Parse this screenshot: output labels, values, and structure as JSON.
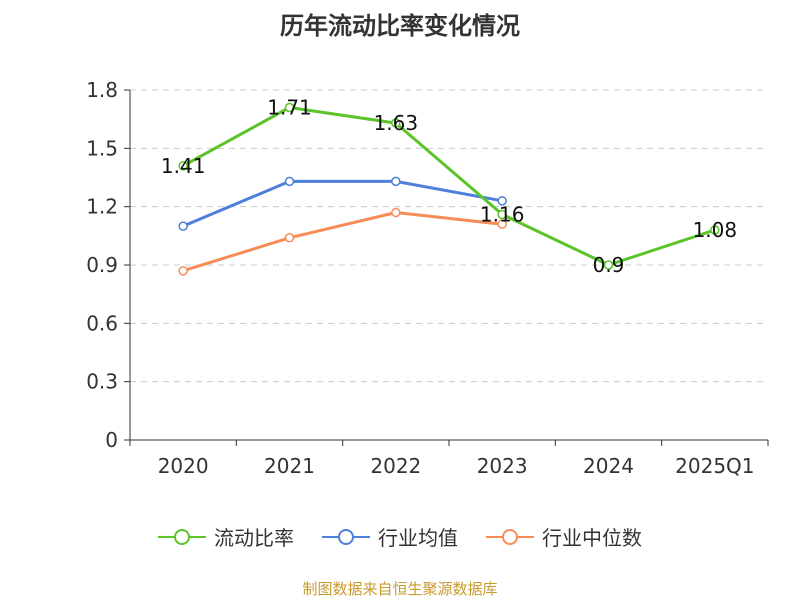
{
  "chart_data": {
    "type": "line",
    "title": "历年流动比率变化情况",
    "categories": [
      "2020",
      "2021",
      "2022",
      "2023",
      "2024",
      "2025Q1"
    ],
    "y_ticks": [
      "0",
      "0.3",
      "0.6",
      "0.9",
      "1.2",
      "1.5",
      "1.8"
    ],
    "ylim": [
      0,
      1.8
    ],
    "grid": true,
    "legend_position": "bottom",
    "series": [
      {
        "name": "流动比率",
        "color": "#5cc32a",
        "values": [
          1.41,
          1.71,
          1.63,
          1.16,
          0.9,
          1.08
        ],
        "labels": [
          "1.41",
          "1.71",
          "1.63",
          "1.16",
          "0.9",
          "1.08"
        ]
      },
      {
        "name": "行业均值",
        "color": "#4e7fdb",
        "values": [
          1.1,
          1.33,
          1.33,
          1.23,
          null,
          null
        ]
      },
      {
        "name": "行业中位数",
        "color": "#f78c57",
        "values": [
          0.87,
          1.04,
          1.17,
          1.11,
          null,
          null
        ]
      }
    ],
    "source": "制图数据来自恒生聚源数据库"
  }
}
